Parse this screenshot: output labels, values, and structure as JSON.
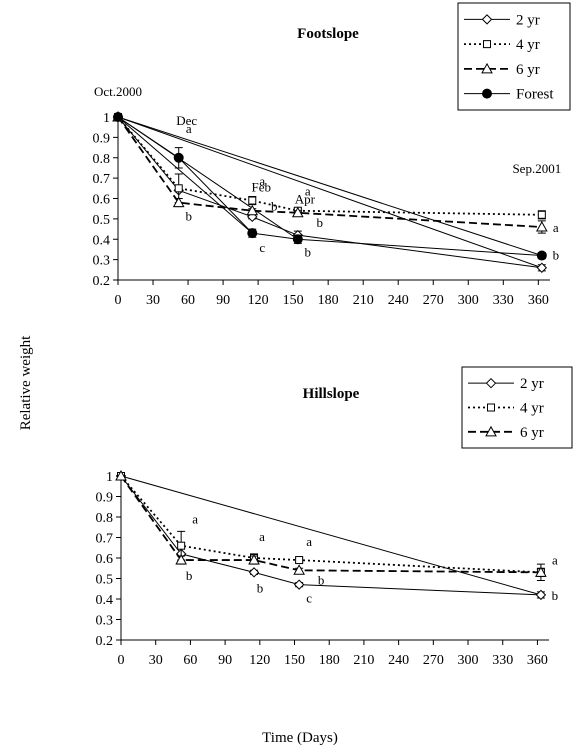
{
  "figure": {
    "ylabel": "Relative weight",
    "xlabel": "Time (Days)"
  },
  "chart_data": [
    {
      "type": "line",
      "title": "Footslope",
      "xlabel": "",
      "ylabel": "",
      "xlim": [
        0,
        370
      ],
      "ylim": [
        0.2,
        1.0
      ],
      "x_ticks": [
        0,
        30,
        60,
        90,
        120,
        150,
        180,
        210,
        240,
        270,
        300,
        330,
        360
      ],
      "y_ticks": [
        0.2,
        0.3,
        0.4,
        0.5,
        0.6,
        0.7,
        0.8,
        0.9,
        1
      ],
      "grid": false,
      "legend": "top-right",
      "series": [
        {
          "name": "2 yr",
          "marker": "diamond-open",
          "dash": "solid",
          "x": [
            0,
            52,
            115,
            154,
            363
          ],
          "y": [
            1.0,
            0.64,
            0.51,
            0.42,
            0.26
          ],
          "err": [
            0,
            0,
            0.01,
            0.02,
            0.015
          ]
        },
        {
          "name": "4 yr",
          "marker": "square-open",
          "dash": "dotted",
          "x": [
            0,
            52,
            115,
            154,
            363
          ],
          "y": [
            1.0,
            0.65,
            0.59,
            0.54,
            0.52
          ],
          "err": [
            0,
            0.07,
            0.02,
            0.01,
            0.02
          ]
        },
        {
          "name": "6 yr",
          "marker": "triangle-open",
          "dash": "dashed",
          "x": [
            0,
            52,
            115,
            154,
            363
          ],
          "y": [
            1.0,
            0.58,
            0.54,
            0.53,
            0.46
          ],
          "err": [
            0,
            0.02,
            0.01,
            0.01,
            0.03
          ]
        },
        {
          "name": "Forest",
          "marker": "circle-filled",
          "dash": "solid",
          "x": [
            0,
            52,
            115,
            154,
            363
          ],
          "y": [
            1.0,
            0.8,
            0.43,
            0.4,
            0.32
          ],
          "err": [
            0,
            0.05,
            0.02,
            0.02,
            0.015
          ]
        }
      ],
      "direct_lines": [
        {
          "from": [
            0,
            1.0
          ],
          "to": [
            115,
            0.43
          ]
        },
        {
          "from": [
            0,
            1.0
          ],
          "to": [
            154,
            0.4
          ]
        },
        {
          "from": [
            0,
            1.0
          ],
          "to": [
            363,
            0.26
          ]
        },
        {
          "from": [
            0,
            1.0
          ],
          "to": [
            363,
            0.32
          ]
        }
      ],
      "date_labels": [
        {
          "text": "Oct.2000",
          "x": 0,
          "y": 1.0
        },
        {
          "text": "Dec",
          "x": 52,
          "y": 0.8
        },
        {
          "text": "Feb",
          "x": 115,
          "y": 0.59
        },
        {
          "text": "Apr",
          "x": 154,
          "y": 0.54
        },
        {
          "text": "Sep.2001",
          "x": 363,
          "y": 0.52
        }
      ],
      "letters": [
        {
          "text": "a",
          "x": 52,
          "y": 0.8
        },
        {
          "text": "b",
          "x": 52,
          "y": 0.58
        },
        {
          "text": "a",
          "x": 115,
          "y": 0.59
        },
        {
          "text": "b",
          "x": 115,
          "y": 0.54
        },
        {
          "text": "c",
          "x": 115,
          "y": 0.43
        },
        {
          "text": "a",
          "x": 154,
          "y": 0.54
        },
        {
          "text": "b",
          "x": 154,
          "y": 0.53
        },
        {
          "text": "b",
          "x": 154,
          "y": 0.4
        },
        {
          "text": "a",
          "x": 363,
          "y": 0.46
        },
        {
          "text": "b",
          "x": 363,
          "y": 0.32
        }
      ]
    },
    {
      "type": "line",
      "title": "Hillslope",
      "xlabel": "",
      "ylabel": "",
      "xlim": [
        0,
        370
      ],
      "ylim": [
        0.2,
        1.0
      ],
      "x_ticks": [
        0,
        30,
        60,
        90,
        120,
        150,
        180,
        210,
        240,
        270,
        300,
        330,
        360
      ],
      "y_ticks": [
        0.2,
        0.3,
        0.4,
        0.5,
        0.6,
        0.7,
        0.8,
        0.9,
        1
      ],
      "grid": false,
      "legend": "top-right",
      "series": [
        {
          "name": "2 yr",
          "marker": "diamond-open",
          "dash": "solid",
          "x": [
            0,
            52,
            115,
            154,
            363
          ],
          "y": [
            1.0,
            0.62,
            0.53,
            0.47,
            0.42
          ],
          "err": [
            0,
            0,
            0.01,
            0.01,
            0.015
          ]
        },
        {
          "name": "4 yr",
          "marker": "square-open",
          "dash": "dotted",
          "x": [
            0,
            52,
            115,
            154,
            363
          ],
          "y": [
            1.0,
            0.66,
            0.6,
            0.59,
            0.53
          ],
          "err": [
            0,
            0.07,
            0.02,
            0.01,
            0.04
          ]
        },
        {
          "name": "6 yr",
          "marker": "triangle-open",
          "dash": "dashed",
          "x": [
            0,
            52,
            115,
            154,
            363
          ],
          "y": [
            1.0,
            0.59,
            0.59,
            0.54,
            0.53
          ],
          "err": [
            0,
            0.02,
            0.02,
            0.01,
            0.02
          ]
        }
      ],
      "direct_lines": [
        {
          "from": [
            0,
            1.0
          ],
          "to": [
            363,
            0.42
          ]
        }
      ],
      "date_labels": [],
      "letters": [
        {
          "text": "a",
          "x": 52,
          "y": 0.66
        },
        {
          "text": "b",
          "x": 52,
          "y": 0.59
        },
        {
          "text": "a",
          "x": 115,
          "y": 0.6
        },
        {
          "text": "b",
          "x": 115,
          "y": 0.53
        },
        {
          "text": "a",
          "x": 154,
          "y": 0.59
        },
        {
          "text": "c",
          "x": 154,
          "y": 0.47
        },
        {
          "text": "b",
          "x": 154,
          "y": 0.54
        },
        {
          "text": "a",
          "x": 363,
          "y": 0.53
        },
        {
          "text": "b",
          "x": 363,
          "y": 0.42
        }
      ]
    }
  ]
}
